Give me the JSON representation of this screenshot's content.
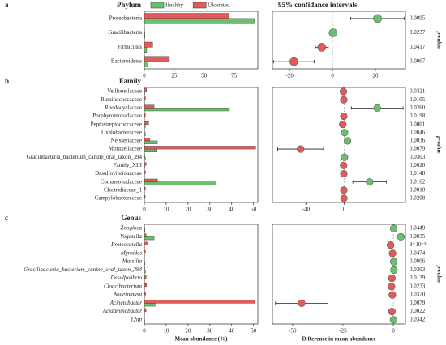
{
  "chart_data": [
    {
      "type": "bar",
      "label": "a",
      "title": "Phylum",
      "categories": [
        "Proteobacteria",
        "Gracilibacteria",
        "Firmicutes",
        "Bacteroidetes"
      ],
      "series": [
        {
          "name": "Healthy",
          "color": "#6cbf6c",
          "values": [
            92,
            0.5,
            2,
            3
          ]
        },
        {
          "name": "Ulcerated",
          "color": "#e25b5b",
          "values": [
            71,
            0.2,
            7,
            21
          ]
        }
      ],
      "xlim": [
        0,
        95
      ],
      "xticks": [
        0,
        25,
        50,
        75
      ]
    },
    {
      "type": "dot",
      "title": "95% confidance intervals",
      "values": [
        21,
        0.3,
        -5,
        -18
      ],
      "errors": [
        12.5,
        0.3,
        3,
        9.5
      ],
      "colors": [
        "#6cbf6c",
        "#6cbf6c",
        "#e25b5b",
        "#e25b5b"
      ],
      "p_values": [
        "0.0095",
        "0.0237",
        "0.0417",
        "0.0067"
      ],
      "p_label": "p-value",
      "xlim": [
        -28,
        34
      ],
      "xticks": [
        -20,
        0,
        20
      ]
    },
    {
      "type": "bar",
      "label": "b",
      "title": "Family",
      "categories": [
        "Veillonellaceae",
        "Ruminococcaceae",
        "Rhodocyclaceae",
        "Porphyromonadaceae",
        "Peptostreptococcaceae",
        "Oxalobacteraceae",
        "Neisseriaceae",
        "Moraxellaceae",
        "Gracilibacteria_bacterium_canine_oral_taxon_394",
        "Family_XIII",
        "Desulfovibrionaceae",
        "Comamonadaceae",
        "Clostridiaceae_1",
        "Campylobacteraceae"
      ],
      "series": [
        {
          "color": "#6cbf6c",
          "values": [
            0.2,
            0.1,
            39,
            0.1,
            0.5,
            0.5,
            6,
            5.5,
            0.5,
            0.2,
            0.1,
            32.5,
            0.1,
            0.1
          ]
        },
        {
          "color": "#e25b5b",
          "values": [
            1,
            0.5,
            4.5,
            0.5,
            2,
            0.1,
            2.5,
            51,
            0.2,
            0.8,
            0.5,
            6,
            0.5,
            0.4
          ]
        }
      ],
      "xlim": [
        0,
        52
      ],
      "xticks": [
        0,
        10,
        20,
        30,
        40,
        50
      ]
    },
    {
      "type": "dot",
      "values": [
        -0.8,
        -0.4,
        34.5,
        -0.4,
        -1.5,
        0.4,
        3.5,
        -45.5,
        0.3,
        -0.6,
        -0.4,
        26.5,
        -0.4,
        -0.3
      ],
      "errors": [
        0.6,
        0.3,
        27,
        0.3,
        1,
        0.3,
        2.5,
        24,
        0.3,
        0.4,
        0.3,
        17.5,
        0.3,
        0.2
      ],
      "colors": [
        "#e25b5b",
        "#e25b5b",
        "#6cbf6c",
        "#e25b5b",
        "#e25b5b",
        "#6cbf6c",
        "#6cbf6c",
        "#e25b5b",
        "#6cbf6c",
        "#e25b5b",
        "#e25b5b",
        "#6cbf6c",
        "#e25b5b",
        "#e25b5b"
      ],
      "p_values": [
        "0.0321",
        "0.0105",
        "0.0260",
        "0.0198",
        "0.0001",
        "0.0046",
        "0.0036",
        "0.0079",
        "0.0303",
        "0.0020",
        "0.0148",
        "0.0162",
        "0.0010",
        "0.0208"
      ],
      "p_label": "p-value",
      "xlim": [
        -75,
        64
      ],
      "xticks": [
        -40,
        0
      ]
    },
    {
      "type": "bar",
      "label": "c",
      "title": "Genus",
      "italic": true,
      "categories": [
        "Zoogloea",
        "Vogesella",
        "Proteocatella",
        "Myroides",
        "Massilia",
        "Gracilibacteria_bacterium_canine_oral_taxon_394",
        "Desulfovibrio",
        "Cloacibacterium",
        "Anaeromusa",
        "Acinetobacter",
        "Acidaminobacter",
        "12up"
      ],
      "series": [
        {
          "color": "#6cbf6c",
          "values": [
            0.3,
            4.5,
            0.1,
            0.1,
            0.3,
            0.5,
            0.1,
            0.1,
            0.1,
            5,
            0.1,
            0.2
          ]
        },
        {
          "color": "#e25b5b",
          "values": [
            0.1,
            0.8,
            1.5,
            0.5,
            0.1,
            0.2,
            0.8,
            1,
            0.6,
            50.5,
            0.8,
            0.1
          ]
        }
      ],
      "xlim": [
        0,
        52
      ],
      "xticks": [
        0,
        10,
        20,
        30,
        40,
        50
      ],
      "xlabel": "Mean abundance (%)"
    },
    {
      "type": "dot",
      "values": [
        0.2,
        3.7,
        -1.4,
        -0.4,
        0.2,
        0.3,
        -0.7,
        -0.9,
        -0.5,
        -45.5,
        -0.7,
        0.1
      ],
      "errors": [
        0.2,
        2,
        1,
        0.3,
        0.2,
        0.3,
        0.5,
        0.6,
        0.4,
        13,
        0.5,
        0.1
      ],
      "colors": [
        "#6cbf6c",
        "#6cbf6c",
        "#e25b5b",
        "#e25b5b",
        "#6cbf6c",
        "#6cbf6c",
        "#e25b5b",
        "#e25b5b",
        "#e25b5b",
        "#e25b5b",
        "#e25b5b",
        "#6cbf6c"
      ],
      "p_values": [
        "0.0449",
        "0.0035",
        "8×10⁻⁵",
        "0.0474",
        "0.0006",
        "0.0303",
        "0.0139",
        "0.0233",
        "0.0370",
        "0.0079",
        "0.0022",
        "0.0342"
      ],
      "p_label": "p-value",
      "xlim": [
        -60,
        6
      ],
      "xticks": [
        -50,
        -25,
        0
      ],
      "xlabel": "Difference in mean abundance"
    }
  ]
}
